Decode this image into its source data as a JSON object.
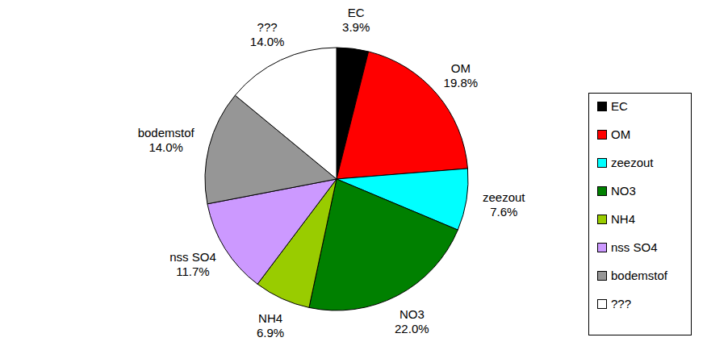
{
  "chart_data": {
    "type": "pie",
    "categories": [
      "EC",
      "OM",
      "zeezout",
      "NO3",
      "NH4",
      "nss SO4",
      "bodemstof",
      "???"
    ],
    "values": [
      3.9,
      19.8,
      7.6,
      22.0,
      6.9,
      11.7,
      14.0,
      14.0
    ],
    "value_labels": [
      "3.9%",
      "19.8%",
      "7.6%",
      "22.0%",
      "6.9%",
      "11.7%",
      "14.0%",
      "14.0%"
    ],
    "colors": [
      "#000000",
      "#ff0000",
      "#00ffff",
      "#008000",
      "#99cc00",
      "#cc99ff",
      "#969696",
      "#ffffff"
    ],
    "data_labels": true,
    "legend": "right"
  }
}
